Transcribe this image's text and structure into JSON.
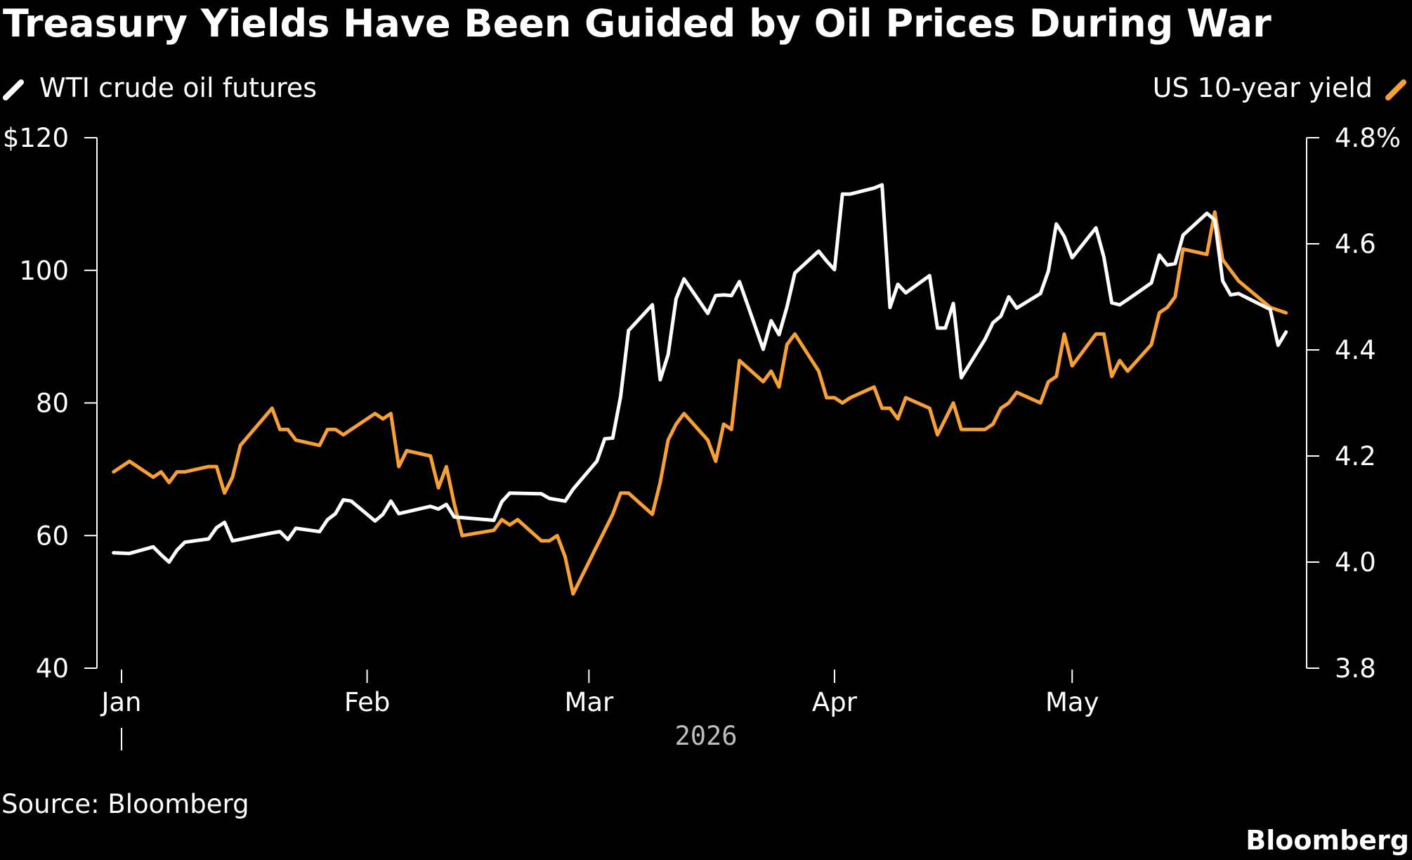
{
  "colors": {
    "background": "#000000",
    "text": "#ffffff",
    "oil": "#ffffff",
    "yield": "#f7a035",
    "year": "#bdbdbd"
  },
  "chart_data": {
    "type": "line",
    "title": "Treasury Yields Have Been Guided by Oil Prices During War",
    "legend_placement": "top",
    "grid": false,
    "x_ticks": [
      {
        "date": "2026-01-01",
        "label": "Jan"
      },
      {
        "date": "2026-02-01",
        "label": "Feb"
      },
      {
        "date": "2026-03-01",
        "label": "Mar"
      },
      {
        "date": "2026-04-01",
        "label": "Apr"
      },
      {
        "date": "2026-05-01",
        "label": "May"
      }
    ],
    "year_label": "2026",
    "xlim": [
      "2026-01-01",
      "2026-05-29"
    ],
    "y_left": {
      "ylim": [
        40,
        120
      ],
      "ticks": [
        40,
        60,
        80,
        100,
        120
      ],
      "tick_labels": [
        "40",
        "60",
        "80",
        "100",
        "$120"
      ]
    },
    "y_right": {
      "ylim": [
        3.8,
        4.8
      ],
      "ticks": [
        3.8,
        4.0,
        4.2,
        4.4,
        4.6,
        4.8
      ],
      "tick_labels": [
        "3.8",
        "4.0",
        "4.2",
        "4.4",
        "4.6",
        "4.8%"
      ]
    },
    "series": [
      {
        "name": "WTI crude oil futures",
        "axis": "left",
        "color": "#ffffff",
        "points": [
          [
            "2025-12-31",
            57.4
          ],
          [
            "2026-01-02",
            57.3
          ],
          [
            "2026-01-05",
            58.3
          ],
          [
            "2026-01-06",
            57.1
          ],
          [
            "2026-01-07",
            56.0
          ],
          [
            "2026-01-08",
            57.8
          ],
          [
            "2026-01-09",
            59.0
          ],
          [
            "2026-01-12",
            59.5
          ],
          [
            "2026-01-13",
            61.2
          ],
          [
            "2026-01-14",
            62.0
          ],
          [
            "2026-01-15",
            59.2
          ],
          [
            "2026-01-20",
            60.4
          ],
          [
            "2026-01-21",
            60.6
          ],
          [
            "2026-01-22",
            59.4
          ],
          [
            "2026-01-23",
            61.1
          ],
          [
            "2026-01-26",
            60.6
          ],
          [
            "2026-01-27",
            62.4
          ],
          [
            "2026-01-28",
            63.3
          ],
          [
            "2026-01-29",
            65.4
          ],
          [
            "2026-01-30",
            65.2
          ],
          [
            "2026-02-02",
            62.2
          ],
          [
            "2026-02-03",
            63.2
          ],
          [
            "2026-02-04",
            65.2
          ],
          [
            "2026-02-05",
            63.3
          ],
          [
            "2026-02-09",
            64.4
          ],
          [
            "2026-02-10",
            64.0
          ],
          [
            "2026-02-11",
            64.7
          ],
          [
            "2026-02-12",
            62.8
          ],
          [
            "2026-02-17",
            62.3
          ],
          [
            "2026-02-18",
            65.1
          ],
          [
            "2026-02-19",
            66.4
          ],
          [
            "2026-02-23",
            66.3
          ],
          [
            "2026-02-24",
            65.6
          ],
          [
            "2026-02-26",
            65.2
          ],
          [
            "2026-02-27",
            67.0
          ],
          [
            "2026-03-02",
            71.2
          ],
          [
            "2026-03-03",
            74.6
          ],
          [
            "2026-03-04",
            74.7
          ],
          [
            "2026-03-05",
            81.0
          ],
          [
            "2026-03-06",
            90.9
          ],
          [
            "2026-03-09",
            94.8
          ],
          [
            "2026-03-10",
            83.5
          ],
          [
            "2026-03-11",
            87.3
          ],
          [
            "2026-03-12",
            95.7
          ],
          [
            "2026-03-13",
            98.7
          ],
          [
            "2026-03-16",
            93.5
          ],
          [
            "2026-03-17",
            96.2
          ],
          [
            "2026-03-18",
            96.3
          ],
          [
            "2026-03-19",
            96.2
          ],
          [
            "2026-03-20",
            98.3
          ],
          [
            "2026-03-23",
            88.1
          ],
          [
            "2026-03-24",
            92.4
          ],
          [
            "2026-03-25",
            90.3
          ],
          [
            "2026-03-26",
            94.5
          ],
          [
            "2026-03-27",
            99.6
          ],
          [
            "2026-03-30",
            102.9
          ],
          [
            "2026-03-31",
            101.4
          ],
          [
            "2026-04-01",
            100.1
          ],
          [
            "2026-04-02",
            111.5
          ],
          [
            "2026-04-03",
            111.5
          ],
          [
            "2026-04-06",
            112.4
          ],
          [
            "2026-04-07",
            112.9
          ],
          [
            "2026-04-08",
            94.4
          ],
          [
            "2026-04-09",
            97.9
          ],
          [
            "2026-04-10",
            96.6
          ],
          [
            "2026-04-13",
            99.2
          ],
          [
            "2026-04-14",
            91.3
          ],
          [
            "2026-04-15",
            91.3
          ],
          [
            "2026-04-16",
            95.0
          ],
          [
            "2026-04-17",
            83.8
          ],
          [
            "2026-04-20",
            89.6
          ],
          [
            "2026-04-21",
            92.1
          ],
          [
            "2026-04-22",
            93.1
          ],
          [
            "2026-04-23",
            96.0
          ],
          [
            "2026-04-24",
            94.3
          ],
          [
            "2026-04-27",
            96.5
          ],
          [
            "2026-04-28",
            99.9
          ],
          [
            "2026-04-29",
            107.0
          ],
          [
            "2026-04-30",
            105.1
          ],
          [
            "2026-05-01",
            101.9
          ],
          [
            "2026-05-04",
            106.4
          ],
          [
            "2026-05-05",
            102.0
          ],
          [
            "2026-05-06",
            95.1
          ],
          [
            "2026-05-07",
            94.8
          ],
          [
            "2026-05-08",
            95.6
          ],
          [
            "2026-05-11",
            98.1
          ],
          [
            "2026-05-12",
            102.3
          ],
          [
            "2026-05-13",
            100.8
          ],
          [
            "2026-05-14",
            101.0
          ],
          [
            "2026-05-15",
            105.3
          ],
          [
            "2026-05-18",
            108.6
          ],
          [
            "2026-05-19",
            107.6
          ],
          [
            "2026-05-20",
            98.4
          ],
          [
            "2026-05-21",
            96.3
          ],
          [
            "2026-05-22",
            96.5
          ],
          [
            "2026-05-26",
            94.1
          ],
          [
            "2026-05-27",
            88.7
          ],
          [
            "2026-05-28",
            90.7
          ]
        ]
      },
      {
        "name": "US 10-year yield",
        "axis": "right",
        "color": "#f7a035",
        "points": [
          [
            "2025-12-31",
            4.17
          ],
          [
            "2026-01-02",
            4.19
          ],
          [
            "2026-01-05",
            4.16
          ],
          [
            "2026-01-06",
            4.17
          ],
          [
            "2026-01-07",
            4.15
          ],
          [
            "2026-01-08",
            4.17
          ],
          [
            "2026-01-09",
            4.17
          ],
          [
            "2026-01-12",
            4.18
          ],
          [
            "2026-01-13",
            4.18
          ],
          [
            "2026-01-14",
            4.13
          ],
          [
            "2026-01-15",
            4.16
          ],
          [
            "2026-01-16",
            4.22
          ],
          [
            "2026-01-20",
            4.29
          ],
          [
            "2026-01-21",
            4.25
          ],
          [
            "2026-01-22",
            4.25
          ],
          [
            "2026-01-23",
            4.23
          ],
          [
            "2026-01-26",
            4.22
          ],
          [
            "2026-01-27",
            4.25
          ],
          [
            "2026-01-28",
            4.25
          ],
          [
            "2026-01-29",
            4.24
          ],
          [
            "2026-01-30",
            4.25
          ],
          [
            "2026-02-02",
            4.28
          ],
          [
            "2026-02-03",
            4.27
          ],
          [
            "2026-02-04",
            4.28
          ],
          [
            "2026-02-05",
            4.18
          ],
          [
            "2026-02-06",
            4.21
          ],
          [
            "2026-02-09",
            4.2
          ],
          [
            "2026-02-10",
            4.14
          ],
          [
            "2026-02-11",
            4.18
          ],
          [
            "2026-02-12",
            4.11
          ],
          [
            "2026-02-13",
            4.05
          ],
          [
            "2026-02-17",
            4.06
          ],
          [
            "2026-02-18",
            4.08
          ],
          [
            "2026-02-19",
            4.07
          ],
          [
            "2026-02-20",
            4.08
          ],
          [
            "2026-02-23",
            4.04
          ],
          [
            "2026-02-24",
            4.04
          ],
          [
            "2026-02-25",
            4.05
          ],
          [
            "2026-02-26",
            4.01
          ],
          [
            "2026-02-27",
            3.94
          ],
          [
            "2026-03-02",
            4.03
          ],
          [
            "2026-03-03",
            4.06
          ],
          [
            "2026-03-04",
            4.09
          ],
          [
            "2026-03-05",
            4.13
          ],
          [
            "2026-03-06",
            4.13
          ],
          [
            "2026-03-09",
            4.09
          ],
          [
            "2026-03-10",
            4.15
          ],
          [
            "2026-03-11",
            4.23
          ],
          [
            "2026-03-12",
            4.26
          ],
          [
            "2026-03-13",
            4.28
          ],
          [
            "2026-03-16",
            4.23
          ],
          [
            "2026-03-17",
            4.19
          ],
          [
            "2026-03-18",
            4.26
          ],
          [
            "2026-03-19",
            4.25
          ],
          [
            "2026-03-20",
            4.38
          ],
          [
            "2026-03-23",
            4.34
          ],
          [
            "2026-03-24",
            4.36
          ],
          [
            "2026-03-25",
            4.33
          ],
          [
            "2026-03-26",
            4.41
          ],
          [
            "2026-03-27",
            4.43
          ],
          [
            "2026-03-30",
            4.36
          ],
          [
            "2026-03-31",
            4.31
          ],
          [
            "2026-04-01",
            4.31
          ],
          [
            "2026-04-02",
            4.3
          ],
          [
            "2026-04-03",
            4.31
          ],
          [
            "2026-04-06",
            4.33
          ],
          [
            "2026-04-07",
            4.29
          ],
          [
            "2026-04-08",
            4.29
          ],
          [
            "2026-04-09",
            4.27
          ],
          [
            "2026-04-10",
            4.31
          ],
          [
            "2026-04-13",
            4.29
          ],
          [
            "2026-04-14",
            4.24
          ],
          [
            "2026-04-15",
            4.27
          ],
          [
            "2026-04-16",
            4.3
          ],
          [
            "2026-04-17",
            4.25
          ],
          [
            "2026-04-20",
            4.25
          ],
          [
            "2026-04-21",
            4.26
          ],
          [
            "2026-04-22",
            4.29
          ],
          [
            "2026-04-23",
            4.3
          ],
          [
            "2026-04-24",
            4.32
          ],
          [
            "2026-04-27",
            4.3
          ],
          [
            "2026-04-28",
            4.34
          ],
          [
            "2026-04-29",
            4.35
          ],
          [
            "2026-04-30",
            4.43
          ],
          [
            "2026-05-01",
            4.37
          ],
          [
            "2026-05-04",
            4.43
          ],
          [
            "2026-05-05",
            4.43
          ],
          [
            "2026-05-06",
            4.35
          ],
          [
            "2026-05-07",
            4.38
          ],
          [
            "2026-05-08",
            4.36
          ],
          [
            "2026-05-11",
            4.41
          ],
          [
            "2026-05-12",
            4.47
          ],
          [
            "2026-05-13",
            4.48
          ],
          [
            "2026-05-14",
            4.5
          ],
          [
            "2026-05-15",
            4.59
          ],
          [
            "2026-05-18",
            4.58
          ],
          [
            "2026-05-19",
            4.66
          ],
          [
            "2026-05-20",
            4.57
          ],
          [
            "2026-05-21",
            4.55
          ],
          [
            "2026-05-22",
            4.53
          ],
          [
            "2026-05-26",
            4.48
          ],
          [
            "2026-05-28",
            4.47
          ]
        ]
      }
    ]
  },
  "source": "Source: Bloomberg",
  "brand": "Bloomberg"
}
